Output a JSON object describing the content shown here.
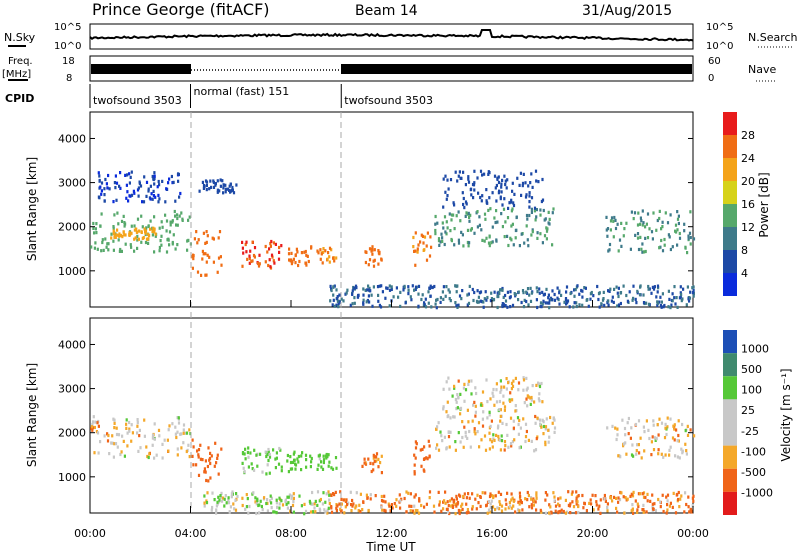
{
  "header": {
    "title": "Prince George (fitACF)",
    "beam": "Beam 14",
    "date": "31/Aug/2015"
  },
  "top_panels": {
    "nsky_label": "N.Sky",
    "nsearch_label": "N.Search",
    "nsky_tick_high": "10^5",
    "nsky_tick_low": "10^0",
    "freq_label": "Freq.",
    "freq_unit": "[MHz]",
    "freq_tick_high": "18",
    "freq_tick_low": "8",
    "nave_label": "Nave",
    "nave_tick_high": "60",
    "nave_tick_low": "0",
    "cpid_label": "CPID",
    "cpid_segments": [
      {
        "start_hour": 0,
        "end_hour": 4,
        "label": "twofsound 3503"
      },
      {
        "start_hour": 4,
        "end_hour": 10,
        "label": "normal (fast) 151"
      },
      {
        "start_hour": 10,
        "end_hour": 24,
        "label": "twofsound 3503"
      }
    ]
  },
  "x_axis": {
    "title": "Time UT",
    "ticks": [
      "00:00",
      "04:00",
      "08:00",
      "12:00",
      "16:00",
      "20:00",
      "00:00"
    ]
  },
  "chart_data": [
    {
      "type": "heatmap",
      "title": "",
      "xlabel": "Time UT",
      "ylabel": "Slant Range [km]",
      "xlim": [
        0,
        24
      ],
      "ylim": [
        180,
        4600
      ],
      "y_ticks": [
        "1000",
        "2000",
        "3000",
        "4000"
      ],
      "colorbar": {
        "label": "Power [dB]",
        "ticks": [
          "4",
          "8",
          "12",
          "16",
          "20",
          "24",
          "28"
        ],
        "range": [
          0,
          30
        ]
      },
      "regions": [
        {
          "t0": 0.0,
          "t1": 4.0,
          "r0": 1450,
          "r1": 2400,
          "value": 14
        },
        {
          "t0": 0.8,
          "t1": 2.6,
          "r0": 1750,
          "r1": 2000,
          "value": 22
        },
        {
          "t0": 0.2,
          "t1": 3.6,
          "r0": 2600,
          "r1": 3300,
          "value": 4
        },
        {
          "t0": 4.0,
          "t1": 5.2,
          "r0": 900,
          "r1": 1950,
          "value": 26
        },
        {
          "t0": 4.3,
          "t1": 5.8,
          "r0": 2800,
          "r1": 3100,
          "value": 6
        },
        {
          "t0": 6.0,
          "t1": 7.6,
          "r0": 1100,
          "r1": 1700,
          "value": 28
        },
        {
          "t0": 7.8,
          "t1": 8.8,
          "r0": 1150,
          "r1": 1600,
          "value": 26
        },
        {
          "t0": 9.0,
          "t1": 9.8,
          "r0": 1200,
          "r1": 1550,
          "value": 24
        },
        {
          "t0": 10.8,
          "t1": 11.6,
          "r0": 1100,
          "r1": 1600,
          "value": 26
        },
        {
          "t0": 12.8,
          "t1": 13.6,
          "r0": 1100,
          "r1": 1900,
          "value": 24
        },
        {
          "t0": 13.6,
          "t1": 18.5,
          "r0": 1600,
          "r1": 2450,
          "value": 12
        },
        {
          "t0": 14.0,
          "t1": 18.0,
          "r0": 2450,
          "r1": 3300,
          "value": 6
        },
        {
          "t0": 20.5,
          "t1": 24.0,
          "r0": 1450,
          "r1": 2400,
          "value": 12
        },
        {
          "t0": 9.5,
          "t1": 24.0,
          "r0": 200,
          "r1": 700,
          "value": 8
        }
      ]
    },
    {
      "type": "heatmap",
      "title": "",
      "xlabel": "Time UT",
      "ylabel": "Slant Range [km]",
      "xlim": [
        0,
        24
      ],
      "ylim": [
        180,
        4600
      ],
      "y_ticks": [
        "1000",
        "2000",
        "3000",
        "4000"
      ],
      "colorbar": {
        "label": "Velocity [m s⁻¹]",
        "ticks": [
          "1000",
          "500",
          "100",
          "25",
          "-25",
          "-100",
          "-500",
          "-1000"
        ],
        "range": [
          -1000,
          1000
        ]
      },
      "regions": [
        {
          "t0": 0.0,
          "t1": 4.0,
          "r0": 1450,
          "r1": 2400,
          "value": 0
        },
        {
          "t0": 4.0,
          "t1": 5.2,
          "r0": 900,
          "r1": 1950,
          "value": -300
        },
        {
          "t0": 6.0,
          "t1": 7.6,
          "r0": 1100,
          "r1": 1700,
          "value": 150
        },
        {
          "t0": 7.8,
          "t1": 8.8,
          "r0": 1150,
          "r1": 1600,
          "value": 300
        },
        {
          "t0": 9.0,
          "t1": 9.8,
          "r0": 1200,
          "r1": 1550,
          "value": 200
        },
        {
          "t0": 10.8,
          "t1": 11.6,
          "r0": 1100,
          "r1": 1600,
          "value": -150
        },
        {
          "t0": 12.8,
          "t1": 13.6,
          "r0": 1100,
          "r1": 1900,
          "value": -300
        },
        {
          "t0": 13.6,
          "t1": 18.5,
          "r0": 1600,
          "r1": 2450,
          "value": 0
        },
        {
          "t0": 14.0,
          "t1": 18.0,
          "r0": 2450,
          "r1": 3300,
          "value": 0
        },
        {
          "t0": 20.5,
          "t1": 24.0,
          "r0": 1450,
          "r1": 2400,
          "value": 0
        },
        {
          "t0": 9.5,
          "t1": 24.0,
          "r0": 200,
          "r1": 700,
          "value": -120
        },
        {
          "t0": 4.5,
          "t1": 9.5,
          "r0": 200,
          "r1": 700,
          "value": 60
        }
      ]
    }
  ]
}
